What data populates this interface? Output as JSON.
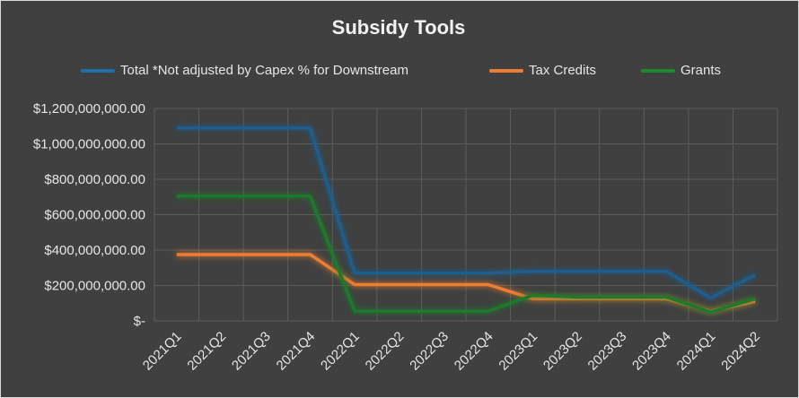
{
  "chart_data": {
    "type": "line",
    "title": "Subsidy Tools",
    "xlabel": "",
    "ylabel": "",
    "ylim": [
      0,
      1200000000
    ],
    "yticks": [
      0,
      200000000,
      400000000,
      600000000,
      800000000,
      1000000000,
      1200000000
    ],
    "ytick_labels": [
      "$-",
      "$200,000,000.00",
      "$400,000,000.00",
      "$600,000,000.00",
      "$800,000,000.00",
      "$1,000,000,000.00",
      "$1,200,000,000.00"
    ],
    "grid": true,
    "legend_position": "top",
    "categories": [
      "2021Q1",
      "2021Q2",
      "2021Q3",
      "2021Q4",
      "2022Q1",
      "2022Q2",
      "2022Q3",
      "2022Q4",
      "2023Q1",
      "2023Q2",
      "2023Q3",
      "2023Q4",
      "2024Q1",
      "2024Q2"
    ],
    "series": [
      {
        "name": "Total *Not adjusted by Capex % for Downstream",
        "color": "#1f5f8f",
        "values": [
          1090000000,
          1090000000,
          1090000000,
          1090000000,
          270000000,
          270000000,
          270000000,
          270000000,
          280000000,
          280000000,
          280000000,
          280000000,
          130000000,
          260000000
        ]
      },
      {
        "name": "Tax Credits",
        "color": "#ed7d31",
        "values": [
          375000000,
          375000000,
          375000000,
          375000000,
          205000000,
          205000000,
          205000000,
          205000000,
          125000000,
          125000000,
          125000000,
          125000000,
          55000000,
          110000000
        ]
      },
      {
        "name": "Grants",
        "color": "#1e7a2c",
        "values": [
          705000000,
          705000000,
          705000000,
          705000000,
          55000000,
          55000000,
          55000000,
          55000000,
          145000000,
          135000000,
          135000000,
          135000000,
          50000000,
          125000000
        ]
      }
    ]
  }
}
